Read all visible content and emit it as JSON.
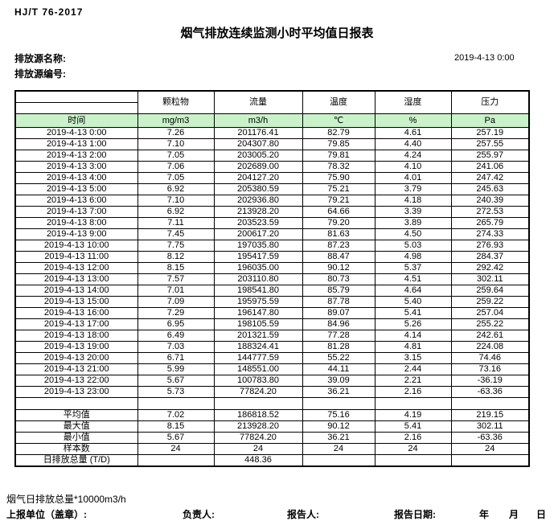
{
  "header": {
    "standard": "HJ/T 76-2017",
    "title": "烟气排放连续监测小时平均值日报表",
    "source_name_label": "排放源名称:",
    "source_code_label": "排放源编号:",
    "datetime": "2019-4-13 0:00"
  },
  "table": {
    "time_header": "时间",
    "header_bg": "#c9f2c9",
    "columns": [
      {
        "label": "颗粒物",
        "unit": "mg/m3"
      },
      {
        "label": "流量",
        "unit": "m3/h"
      },
      {
        "label": "温度",
        "unit": "℃"
      },
      {
        "label": "湿度",
        "unit": "%"
      },
      {
        "label": "压力",
        "unit": "Pa"
      }
    ],
    "rows": [
      {
        "time": "2019-4-13 0:00",
        "values": [
          "7.26",
          "201176.41",
          "82.79",
          "4.61",
          "257.19"
        ]
      },
      {
        "time": "2019-4-13 1:00",
        "values": [
          "7.10",
          "204307.80",
          "79.85",
          "4.40",
          "257.55"
        ]
      },
      {
        "time": "2019-4-13 2:00",
        "values": [
          "7.05",
          "203005.20",
          "79.81",
          "4.24",
          "255.97"
        ]
      },
      {
        "time": "2019-4-13 3:00",
        "values": [
          "7.06",
          "202689.00",
          "78.32",
          "4.10",
          "241.06"
        ]
      },
      {
        "time": "2019-4-13 4:00",
        "values": [
          "7.05",
          "204127.20",
          "75.90",
          "4.01",
          "247.42"
        ]
      },
      {
        "time": "2019-4-13 5:00",
        "values": [
          "6.92",
          "205380.59",
          "75.21",
          "3.79",
          "245.63"
        ]
      },
      {
        "time": "2019-4-13 6:00",
        "values": [
          "7.10",
          "202936.80",
          "79.21",
          "4.18",
          "240.39"
        ]
      },
      {
        "time": "2019-4-13 7:00",
        "values": [
          "6.92",
          "213928.20",
          "64.66",
          "3.39",
          "272.53"
        ]
      },
      {
        "time": "2019-4-13 8:00",
        "values": [
          "7.11",
          "203523.59",
          "79.20",
          "3.89",
          "265.79"
        ]
      },
      {
        "time": "2019-4-13 9:00",
        "values": [
          "7.45",
          "200617.20",
          "81.63",
          "4.50",
          "274.33"
        ]
      },
      {
        "time": "2019-4-13 10:00",
        "values": [
          "7.75",
          "197035.80",
          "87.23",
          "5.03",
          "276.93"
        ]
      },
      {
        "time": "2019-4-13 11:00",
        "values": [
          "8.12",
          "195417.59",
          "88.47",
          "4.98",
          "284.37"
        ]
      },
      {
        "time": "2019-4-13 12:00",
        "values": [
          "8.15",
          "196035.00",
          "90.12",
          "5.37",
          "292.42"
        ]
      },
      {
        "time": "2019-4-13 13:00",
        "values": [
          "7.57",
          "203110.80",
          "80.73",
          "4.51",
          "302.11"
        ]
      },
      {
        "time": "2019-4-13 14:00",
        "values": [
          "7.01",
          "198541.80",
          "85.79",
          "4.64",
          "259.64"
        ]
      },
      {
        "time": "2019-4-13 15:00",
        "values": [
          "7.09",
          "195975.59",
          "87.78",
          "5.40",
          "259.22"
        ]
      },
      {
        "time": "2019-4-13 16:00",
        "values": [
          "7.29",
          "196147.80",
          "89.07",
          "5.41",
          "257.04"
        ]
      },
      {
        "time": "2019-4-13 17:00",
        "values": [
          "6.95",
          "198105.59",
          "84.96",
          "5.26",
          "255.22"
        ]
      },
      {
        "time": "2019-4-13 18:00",
        "values": [
          "6.49",
          "201321.59",
          "77.28",
          "4.14",
          "242.61"
        ]
      },
      {
        "time": "2019-4-13 19:00",
        "values": [
          "7.03",
          "188324.41",
          "81.28",
          "4.81",
          "224.08"
        ]
      },
      {
        "time": "2019-4-13 20:00",
        "values": [
          "6.71",
          "144777.59",
          "55.22",
          "3.15",
          "74.46"
        ]
      },
      {
        "time": "2019-4-13 21:00",
        "values": [
          "5.99",
          "148551.00",
          "44.11",
          "2.44",
          "73.16"
        ]
      },
      {
        "time": "2019-4-13 22:00",
        "values": [
          "5.67",
          "100783.80",
          "39.09",
          "2.21",
          "-36.19"
        ]
      },
      {
        "time": "2019-4-13 23:00",
        "values": [
          "5.73",
          "77824.20",
          "36.21",
          "2.16",
          "-63.36"
        ]
      }
    ],
    "summary": [
      {
        "label": "平均值",
        "values": [
          "7.02",
          "186818.52",
          "75.16",
          "4.19",
          "219.15"
        ]
      },
      {
        "label": "最大值",
        "values": [
          "8.15",
          "213928.20",
          "90.12",
          "5.41",
          "302.11"
        ]
      },
      {
        "label": "最小值",
        "values": [
          "5.67",
          "77824.20",
          "36.21",
          "2.16",
          "-63.36"
        ]
      },
      {
        "label": "样本数",
        "values": [
          "24",
          "24",
          "24",
          "24",
          "24"
        ]
      },
      {
        "label": "日排放总量 (T/D)",
        "values": [
          "",
          "448.36",
          "",
          "",
          ""
        ]
      }
    ]
  },
  "footer": {
    "note": "烟气日排放总量*10000m3/h",
    "unit_label": "上报单位（盖章）:",
    "responsible_label": "负责人:",
    "reporter_label": "报告人:",
    "report_date_label": "报告日期:",
    "year_label": "年",
    "month_label": "月",
    "day_label": "日"
  }
}
